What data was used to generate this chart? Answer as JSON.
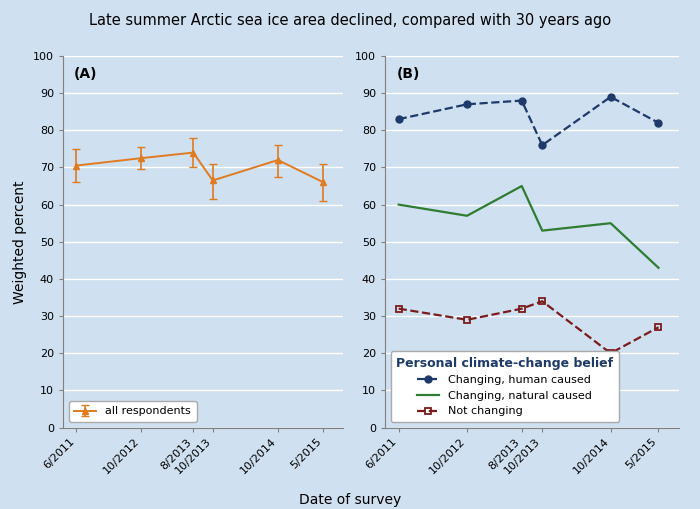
{
  "title": "Late summer Arctic sea ice area declined, compared with 30 years ago",
  "xlabel": "Date of survey",
  "ylabel": "Weighted percent",
  "bg_color": "#cfe0f0",
  "panel_A_label": "(A)",
  "panel_B_label": "(B)",
  "x_labels": [
    "6/2011",
    "10/2012",
    "8/2013",
    "10/2013",
    "10/2014",
    "5/2015"
  ],
  "x_positions": [
    0,
    1.0,
    1.8,
    2.1,
    3.1,
    3.8
  ],
  "all_respondents": {
    "y": [
      70.5,
      72.5,
      74.0,
      66.5,
      72.0,
      66.0
    ],
    "yerr_lo": [
      4.5,
      3.0,
      4.0,
      5.0,
      4.5,
      5.0
    ],
    "yerr_hi": [
      4.5,
      3.0,
      4.0,
      4.5,
      4.0,
      5.0
    ],
    "color": "#e07b20",
    "marker": "^",
    "linestyle": "-",
    "label": "all respondents"
  },
  "human_caused": {
    "y": [
      83.0,
      87.0,
      88.0,
      76.0,
      89.0,
      82.0
    ],
    "color": "#1e3a6b",
    "marker": "o",
    "linestyle": "--",
    "label": "Changing, human caused"
  },
  "natural_caused": {
    "y": [
      60.0,
      57.0,
      65.0,
      53.0,
      55.0,
      43.0
    ],
    "color": "#2e7d32",
    "marker": null,
    "linestyle": "-",
    "label": "Changing, natural caused"
  },
  "not_changing": {
    "y": [
      32.0,
      29.0,
      32.0,
      34.0,
      20.0,
      27.0
    ],
    "color": "#7b1c1c",
    "marker": "s",
    "linestyle": "--",
    "label": "Not changing"
  },
  "ylim": [
    0,
    100
  ],
  "yticks": [
    0,
    10,
    20,
    30,
    40,
    50,
    60,
    70,
    80,
    90,
    100
  ],
  "legend_title": "Personal climate-change belief",
  "title_fontsize": 10.5,
  "label_fontsize": 10,
  "tick_fontsize": 8,
  "legend_fontsize": 8,
  "legend_title_fontsize": 9
}
